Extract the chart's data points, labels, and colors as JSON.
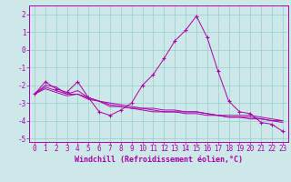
{
  "xlabel": "Windchill (Refroidissement éolien,°C)",
  "background_color": "#cce8e8",
  "grid_color": "#99cccc",
  "line_color": "#aa00aa",
  "xlim": [
    -0.5,
    23.5
  ],
  "ylim": [
    -5.2,
    2.5
  ],
  "yticks": [
    -5,
    -4,
    -3,
    -2,
    -1,
    0,
    1,
    2
  ],
  "xticks": [
    0,
    1,
    2,
    3,
    4,
    5,
    6,
    7,
    8,
    9,
    10,
    11,
    12,
    13,
    14,
    15,
    16,
    17,
    18,
    19,
    20,
    21,
    22,
    23
  ],
  "line1_x": [
    0,
    1,
    2,
    3,
    4,
    5,
    6,
    7,
    8,
    9,
    10,
    11,
    12,
    13,
    14,
    15,
    16,
    17,
    18,
    19,
    20,
    21,
    22,
    23
  ],
  "line1_y": [
    -2.5,
    -1.8,
    -2.2,
    -2.4,
    -1.8,
    -2.7,
    -3.5,
    -3.7,
    -3.4,
    -3.0,
    -2.0,
    -1.4,
    -0.5,
    0.5,
    1.1,
    1.9,
    0.7,
    -1.2,
    -2.9,
    -3.5,
    -3.6,
    -4.1,
    -4.2,
    -4.6
  ],
  "line2_x": [
    0,
    1,
    2,
    3,
    4,
    5,
    6,
    7,
    8,
    9,
    10,
    11,
    12,
    13,
    14,
    15,
    16,
    17,
    18,
    19,
    20,
    21,
    22,
    23
  ],
  "line2_y": [
    -2.5,
    -2.1,
    -2.3,
    -2.5,
    -2.5,
    -2.7,
    -2.9,
    -3.1,
    -3.2,
    -3.3,
    -3.3,
    -3.4,
    -3.5,
    -3.5,
    -3.6,
    -3.6,
    -3.7,
    -3.7,
    -3.8,
    -3.8,
    -3.9,
    -3.9,
    -4.0,
    -4.0
  ],
  "line3_x": [
    0,
    1,
    2,
    3,
    4,
    5,
    6,
    7,
    8,
    9,
    10,
    11,
    12,
    13,
    14,
    15,
    16,
    17,
    18,
    19,
    20,
    21,
    22,
    23
  ],
  "line3_y": [
    -2.5,
    -2.2,
    -2.4,
    -2.6,
    -2.5,
    -2.8,
    -2.9,
    -3.2,
    -3.2,
    -3.3,
    -3.4,
    -3.5,
    -3.5,
    -3.5,
    -3.5,
    -3.5,
    -3.6,
    -3.7,
    -3.8,
    -3.8,
    -3.8,
    -3.9,
    -4.0,
    -4.1
  ],
  "line4_x": [
    0,
    1,
    2,
    3,
    4,
    5,
    6,
    7,
    8,
    9,
    10,
    11,
    12,
    13,
    14,
    15,
    16,
    17,
    18,
    19,
    20,
    21,
    22,
    23
  ],
  "line4_y": [
    -2.5,
    -2.0,
    -2.1,
    -2.5,
    -2.3,
    -2.7,
    -2.9,
    -3.0,
    -3.1,
    -3.2,
    -3.3,
    -3.3,
    -3.4,
    -3.4,
    -3.5,
    -3.5,
    -3.6,
    -3.7,
    -3.7,
    -3.7,
    -3.7,
    -3.8,
    -3.9,
    -4.0
  ],
  "tick_fontsize": 5.5,
  "xlabel_fontsize": 6.0
}
